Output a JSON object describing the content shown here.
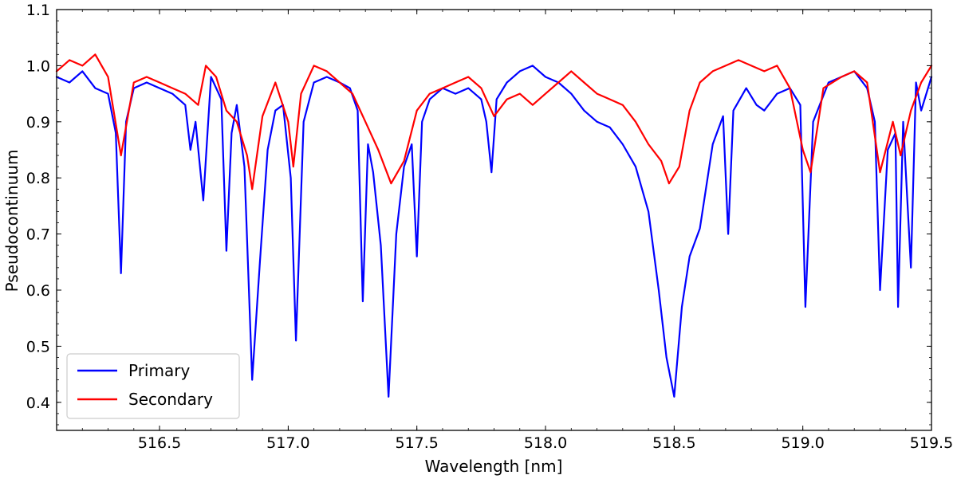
{
  "chart_data": {
    "type": "line",
    "title": "",
    "xlabel": "Wavelength [nm]",
    "ylabel": "Pseudocontinuum",
    "xlim": [
      516.1,
      519.5
    ],
    "ylim": [
      0.35,
      1.1
    ],
    "xticks": [
      516.5,
      517.0,
      517.5,
      518.0,
      518.5,
      519.0,
      519.5
    ],
    "xtick_labels": [
      "516.5",
      "517.0",
      "517.5",
      "518.0",
      "518.5",
      "519.0",
      "519.5"
    ],
    "yticks": [
      0.4,
      0.5,
      0.6,
      0.7,
      0.8,
      0.9,
      1.0,
      1.1
    ],
    "ytick_labels": [
      "0.4",
      "0.5",
      "0.6",
      "0.7",
      "0.8",
      "0.9",
      "1.0",
      "1.1"
    ],
    "grid": false,
    "legend_position": "lower-left",
    "series": [
      {
        "name": "Primary",
        "color": "#0000ff",
        "x": [
          516.1,
          516.15,
          516.2,
          516.25,
          516.3,
          516.33,
          516.35,
          516.37,
          516.4,
          516.45,
          516.5,
          516.55,
          516.6,
          516.62,
          516.64,
          516.67,
          516.7,
          516.74,
          516.76,
          516.78,
          516.8,
          516.83,
          516.86,
          516.89,
          516.92,
          516.95,
          516.98,
          517.01,
          517.03,
          517.06,
          517.1,
          517.15,
          517.2,
          517.24,
          517.27,
          517.29,
          517.31,
          517.33,
          517.36,
          517.39,
          517.42,
          517.45,
          517.48,
          517.5,
          517.52,
          517.55,
          517.6,
          517.65,
          517.7,
          517.75,
          517.77,
          517.79,
          517.81,
          517.85,
          517.9,
          517.95,
          518.0,
          518.05,
          518.1,
          518.15,
          518.2,
          518.25,
          518.3,
          518.35,
          518.4,
          518.44,
          518.47,
          518.5,
          518.53,
          518.56,
          518.6,
          518.65,
          518.69,
          518.71,
          518.73,
          518.78,
          518.82,
          518.85,
          518.9,
          518.95,
          518.99,
          519.01,
          519.04,
          519.1,
          519.15,
          519.2,
          519.25,
          519.28,
          519.3,
          519.33,
          519.36,
          519.37,
          519.39,
          519.42,
          519.44,
          519.46,
          519.5
        ],
        "y": [
          0.98,
          0.97,
          0.99,
          0.96,
          0.95,
          0.88,
          0.63,
          0.9,
          0.96,
          0.97,
          0.96,
          0.95,
          0.93,
          0.85,
          0.9,
          0.76,
          0.98,
          0.94,
          0.67,
          0.88,
          0.93,
          0.82,
          0.44,
          0.65,
          0.85,
          0.92,
          0.93,
          0.8,
          0.51,
          0.9,
          0.97,
          0.98,
          0.97,
          0.96,
          0.92,
          0.58,
          0.86,
          0.81,
          0.68,
          0.41,
          0.7,
          0.82,
          0.86,
          0.66,
          0.9,
          0.94,
          0.96,
          0.95,
          0.96,
          0.94,
          0.9,
          0.81,
          0.94,
          0.97,
          0.99,
          1.0,
          0.98,
          0.97,
          0.95,
          0.92,
          0.9,
          0.89,
          0.86,
          0.82,
          0.74,
          0.6,
          0.48,
          0.41,
          0.57,
          0.66,
          0.71,
          0.86,
          0.91,
          0.7,
          0.92,
          0.96,
          0.93,
          0.92,
          0.95,
          0.96,
          0.93,
          0.57,
          0.9,
          0.97,
          0.98,
          0.99,
          0.96,
          0.9,
          0.6,
          0.85,
          0.88,
          0.57,
          0.9,
          0.64,
          0.97,
          0.92,
          0.98
        ]
      },
      {
        "name": "Secondary",
        "color": "#ff0000",
        "x": [
          516.1,
          516.15,
          516.2,
          516.25,
          516.3,
          516.35,
          516.4,
          516.45,
          516.5,
          516.55,
          516.6,
          516.65,
          516.68,
          516.72,
          516.76,
          516.8,
          516.84,
          516.86,
          516.9,
          516.95,
          517.0,
          517.02,
          517.05,
          517.1,
          517.15,
          517.2,
          517.25,
          517.3,
          517.35,
          517.4,
          517.45,
          517.5,
          517.55,
          517.6,
          517.65,
          517.7,
          517.75,
          517.8,
          517.85,
          517.9,
          517.95,
          518.0,
          518.05,
          518.1,
          518.15,
          518.2,
          518.25,
          518.3,
          518.35,
          518.4,
          518.45,
          518.48,
          518.52,
          518.56,
          518.6,
          518.65,
          518.7,
          518.75,
          518.8,
          518.85,
          518.9,
          518.95,
          519.0,
          519.03,
          519.08,
          519.15,
          519.2,
          519.25,
          519.3,
          519.35,
          519.38,
          519.42,
          519.46,
          519.5
        ],
        "y": [
          0.99,
          1.01,
          1.0,
          1.02,
          0.98,
          0.84,
          0.97,
          0.98,
          0.97,
          0.96,
          0.95,
          0.93,
          1.0,
          0.98,
          0.92,
          0.9,
          0.84,
          0.78,
          0.91,
          0.97,
          0.9,
          0.82,
          0.95,
          1.0,
          0.99,
          0.97,
          0.95,
          0.9,
          0.85,
          0.79,
          0.83,
          0.92,
          0.95,
          0.96,
          0.97,
          0.98,
          0.96,
          0.91,
          0.94,
          0.95,
          0.93,
          0.95,
          0.97,
          0.99,
          0.97,
          0.95,
          0.94,
          0.93,
          0.9,
          0.86,
          0.83,
          0.79,
          0.82,
          0.92,
          0.97,
          0.99,
          1.0,
          1.01,
          1.0,
          0.99,
          1.0,
          0.96,
          0.85,
          0.81,
          0.96,
          0.98,
          0.99,
          0.97,
          0.81,
          0.9,
          0.84,
          0.92,
          0.97,
          1.0
        ]
      }
    ]
  }
}
